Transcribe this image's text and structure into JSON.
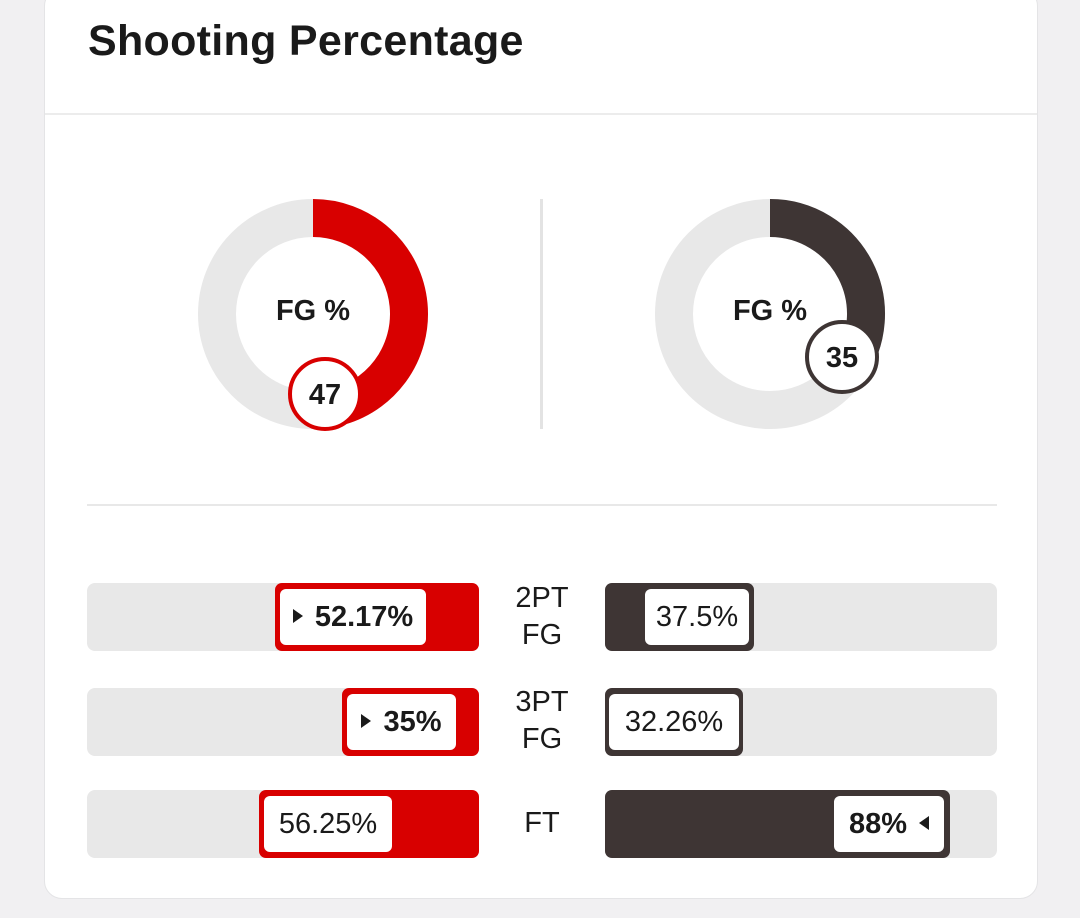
{
  "title": "Shooting Percentage",
  "colors": {
    "team_left": "#d80000",
    "team_right": "#3e3534",
    "track": "#e8e8e8"
  },
  "donuts": {
    "left": {
      "label": "FG %",
      "value": "47"
    },
    "right": {
      "label": "FG %",
      "value": "35"
    }
  },
  "rows": [
    {
      "label": "2PT FG",
      "label_line1": "2PT",
      "label_line2": "FG",
      "left": "52.17%",
      "right": "37.5%",
      "left_fraction": 0.5217,
      "right_fraction": 0.375,
      "leader": "left"
    },
    {
      "label": "3PT FG",
      "label_line1": "3PT",
      "label_line2": "FG",
      "left": "35%",
      "right": "32.26%",
      "left_fraction": 0.35,
      "right_fraction": 0.3226,
      "leader": "left"
    },
    {
      "label": "FT",
      "label_line1": "FT",
      "label_line2": "",
      "left": "56.25%",
      "right": "88%",
      "left_fraction": 0.5625,
      "right_fraction": 0.88,
      "leader": "right"
    }
  ]
}
